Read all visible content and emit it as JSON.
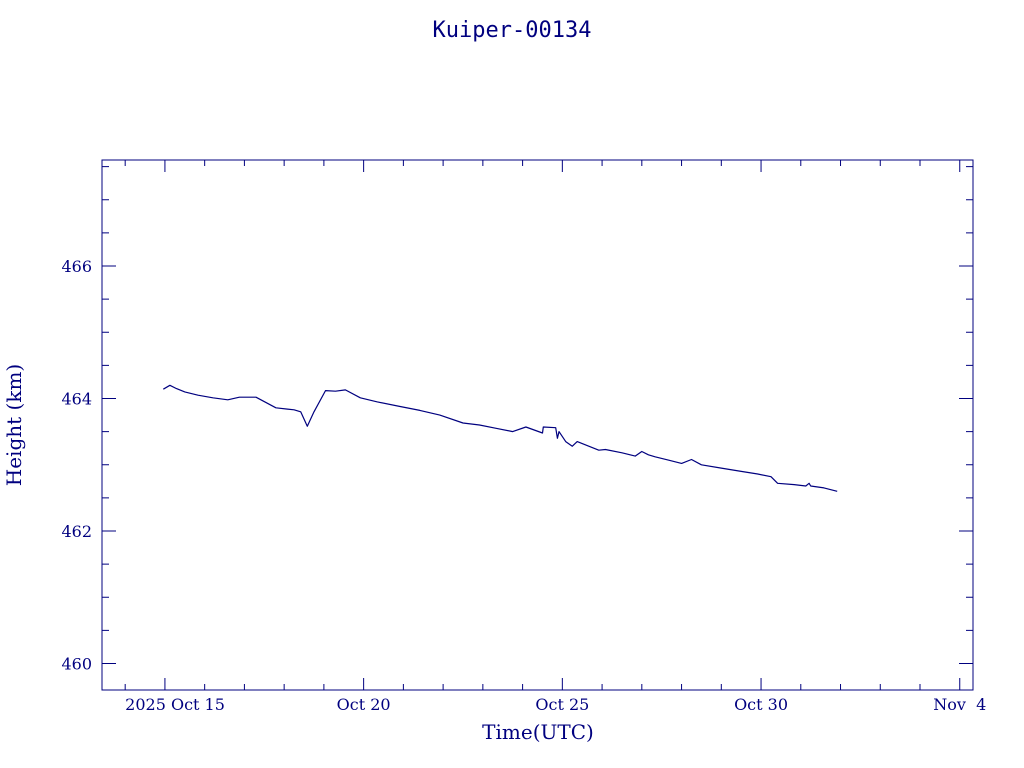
{
  "chart_data": {
    "type": "line",
    "title": "Kuiper-00134",
    "xlabel": "Time(UTC)",
    "ylabel": "Height (km)",
    "x_ticks": [
      {
        "x": "2025-10-15",
        "label": "2025 Oct 15"
      },
      {
        "x": "2025-10-20",
        "label": "Oct 20"
      },
      {
        "x": "2025-10-25",
        "label": "Oct 25"
      },
      {
        "x": "2025-10-30",
        "label": "Oct 30"
      },
      {
        "x": "2025-11-04",
        "label": "Nov  4"
      }
    ],
    "y_ticks": [
      460,
      462,
      464,
      466
    ],
    "xlim": [
      "2025-10-13T10:00",
      "2025-11-04T08:00"
    ],
    "ylim": [
      459.6,
      467.6
    ],
    "color": "#00007f",
    "series": [
      {
        "x": [
          "2025-10-14T23:00",
          "2025-10-15T03:00",
          "2025-10-15T07:00",
          "2025-10-15T12:00",
          "2025-10-15T20:00",
          "2025-10-16T05:00",
          "2025-10-16T14:00",
          "2025-10-16T21:00",
          "2025-10-17T07:00",
          "2025-10-17T19:00",
          "2025-10-18T02:00",
          "2025-10-18T06:00",
          "2025-10-18T10:00",
          "2025-10-18T14:00",
          "2025-10-18T18:00",
          "2025-10-19T01:00",
          "2025-10-19T07:00",
          "2025-10-19T13:00",
          "2025-10-19T22:00",
          "2025-10-20T08:00",
          "2025-10-20T22:00",
          "2025-10-21T10:00",
          "2025-10-21T22:00",
          "2025-10-22T12:00",
          "2025-10-22T22:00",
          "2025-10-23T08:00",
          "2025-10-23T18:00",
          "2025-10-24T02:00",
          "2025-10-24T12:00",
          "2025-10-24T12:30",
          "2025-10-24T20:00",
          "2025-10-24T21:00",
          "2025-10-24T22:00",
          "2025-10-25T02:00",
          "2025-10-25T06:00",
          "2025-10-25T09:00",
          "2025-10-25T12:00",
          "2025-10-25T22:00",
          "2025-10-26T02:00",
          "2025-10-26T12:00",
          "2025-10-26T20:00",
          "2025-10-27T00:00",
          "2025-10-27T04:00",
          "2025-10-27T08:00",
          "2025-10-27T16:00",
          "2025-10-28T00:00",
          "2025-10-28T06:00",
          "2025-10-28T12:00",
          "2025-10-29T00:00",
          "2025-10-29T12:00",
          "2025-10-29T22:00",
          "2025-10-30T06:00",
          "2025-10-30T10:00",
          "2025-10-30T20:00",
          "2025-10-31T03:00",
          "2025-10-31T05:00",
          "2025-10-31T06:00",
          "2025-10-31T14:00",
          "2025-10-31T22:00"
        ],
        "y": [
          464.14,
          464.2,
          464.15,
          464.1,
          464.05,
          464.01,
          463.98,
          464.02,
          464.02,
          463.86,
          463.84,
          463.83,
          463.8,
          463.58,
          463.8,
          464.12,
          464.11,
          464.13,
          464.01,
          463.95,
          463.88,
          463.82,
          463.75,
          463.63,
          463.6,
          463.55,
          463.5,
          463.57,
          463.48,
          463.57,
          463.56,
          463.4,
          463.5,
          463.35,
          463.28,
          463.35,
          463.32,
          463.22,
          463.23,
          463.18,
          463.13,
          463.2,
          463.15,
          463.12,
          463.07,
          463.02,
          463.08,
          463.0,
          462.95,
          462.9,
          462.86,
          462.82,
          462.72,
          462.7,
          462.68,
          462.72,
          462.68,
          462.65,
          462.6
        ]
      }
    ]
  }
}
